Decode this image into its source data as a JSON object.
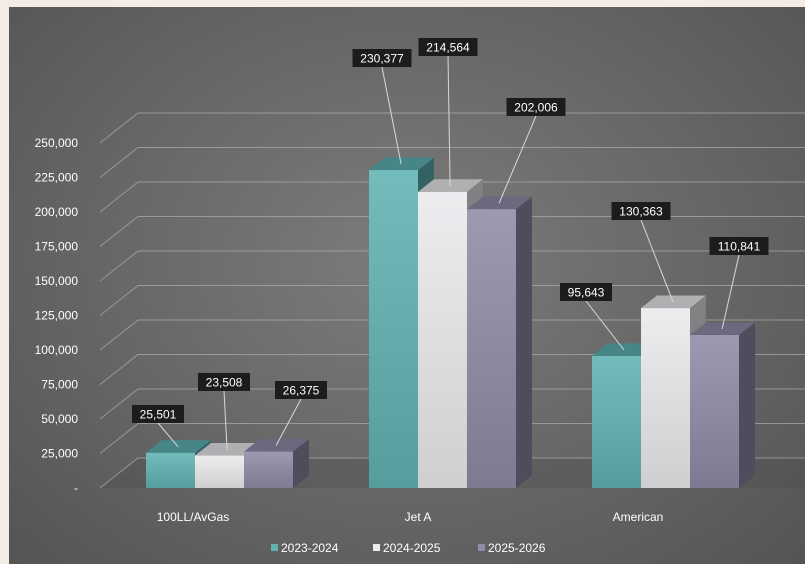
{
  "chart_data": {
    "type": "bar",
    "categories": [
      "100LL/AvGas",
      "Jet A",
      "American"
    ],
    "series": [
      {
        "name": "2023-2024",
        "values": [
          25501,
          230377,
          95643
        ],
        "color": "#5fb3b3"
      },
      {
        "name": "2024-2025",
        "values": [
          23508,
          214564,
          130363
        ],
        "color": "#ebebee"
      },
      {
        "name": "2025-2026",
        "values": [
          26375,
          202006,
          110841
        ],
        "color": "#8e8ca6"
      }
    ],
    "data_labels": [
      [
        "25,501",
        "230,377",
        "95,643"
      ],
      [
        "23,508",
        "214,564",
        "130,363"
      ],
      [
        "26,375",
        "202,006",
        "110,841"
      ]
    ],
    "y_ticks": [
      "-",
      "25,000",
      "50,000",
      "75,000",
      "100,000",
      "125,000",
      "150,000",
      "175,000",
      "200,000",
      "225,000",
      "250,000"
    ],
    "ylim": [
      0,
      250000
    ],
    "grid": true,
    "legend_position": "bottom",
    "style": "3d-clustered-column",
    "title": "",
    "xlabel": "",
    "ylabel": ""
  }
}
